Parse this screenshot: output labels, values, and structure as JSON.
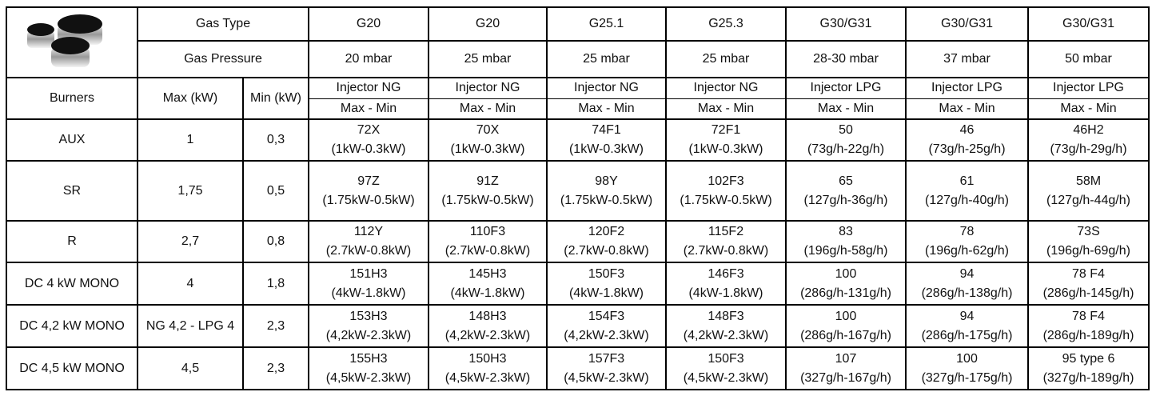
{
  "header": {
    "gas_type_label": "Gas Type",
    "gas_pressure_label": "Gas Pressure",
    "burners_label": "Burners",
    "max_label": "Max (kW)",
    "min_label": "Min (kW)",
    "columns": [
      {
        "gas_type": "G20",
        "pressure": "20 mbar",
        "injector": "Injector NG",
        "range": "Max - Min"
      },
      {
        "gas_type": "G20",
        "pressure": "25 mbar",
        "injector": "Injector NG",
        "range": "Max - Min"
      },
      {
        "gas_type": "G25.1",
        "pressure": "25 mbar",
        "injector": "Injector NG",
        "range": "Max - Min"
      },
      {
        "gas_type": "G25.3",
        "pressure": "25 mbar",
        "injector": "Injector NG",
        "range": "Max - Min"
      },
      {
        "gas_type": "G30/G31",
        "pressure": "28-30 mbar",
        "injector": "Injector LPG",
        "range": "Max - Min"
      },
      {
        "gas_type": "G30/G31",
        "pressure": "37 mbar",
        "injector": "Injector LPG",
        "range": "Max - Min"
      },
      {
        "gas_type": "G30/G31",
        "pressure": "50 mbar",
        "injector": "Injector LPG",
        "range": "Max - Min"
      }
    ]
  },
  "rows": [
    {
      "burner": "AUX",
      "max": "1",
      "min": "0,3",
      "cells": [
        {
          "code": "72X",
          "range": "(1kW-0.3kW)"
        },
        {
          "code": "70X",
          "range": "(1kW-0.3kW)"
        },
        {
          "code": "74F1",
          "range": "(1kW-0.3kW)"
        },
        {
          "code": "72F1",
          "range": "(1kW-0.3kW)"
        },
        {
          "code": "50",
          "range": "(73g/h-22g/h)"
        },
        {
          "code": "46",
          "range": "(73g/h-25g/h)"
        },
        {
          "code": "46H2",
          "range": "(73g/h-29g/h)"
        }
      ]
    },
    {
      "burner": "SR",
      "max": "1,75",
      "min": "0,5",
      "cells": [
        {
          "code": "97Z",
          "range": "(1.75kW-0.5kW)"
        },
        {
          "code": "91Z",
          "range": "(1.75kW-0.5kW)"
        },
        {
          "code": "98Y",
          "range": "(1.75kW-0.5kW)"
        },
        {
          "code": "102F3",
          "range": "(1.75kW-0.5kW)"
        },
        {
          "code": "65",
          "range": "(127g/h-36g/h)"
        },
        {
          "code": "61",
          "range": "(127g/h-40g/h)"
        },
        {
          "code": "58M",
          "range": "(127g/h-44g/h)"
        }
      ]
    },
    {
      "burner": "R",
      "max": "2,7",
      "min": "0,8",
      "cells": [
        {
          "code": "112Y",
          "range": "(2.7kW-0.8kW)"
        },
        {
          "code": "110F3",
          "range": "(2.7kW-0.8kW)"
        },
        {
          "code": "120F2",
          "range": "(2.7kW-0.8kW)"
        },
        {
          "code": "115F2",
          "range": "(2.7kW-0.8kW)"
        },
        {
          "code": "83",
          "range": "(196g/h-58g/h)"
        },
        {
          "code": "78",
          "range": "(196g/h-62g/h)"
        },
        {
          "code": "73S",
          "range": "(196g/h-69g/h)"
        }
      ]
    },
    {
      "burner": "DC 4 kW MONO",
      "max": "4",
      "min": "1,8",
      "cells": [
        {
          "code": "151H3",
          "range": "(4kW-1.8kW)"
        },
        {
          "code": "145H3",
          "range": "(4kW-1.8kW)"
        },
        {
          "code": "150F3",
          "range": "(4kW-1.8kW)"
        },
        {
          "code": "146F3",
          "range": "(4kW-1.8kW)"
        },
        {
          "code": "100",
          "range": "(286g/h-131g/h)"
        },
        {
          "code": "94",
          "range": "(286g/h-138g/h)"
        },
        {
          "code": "78 F4",
          "range": "(286g/h-145g/h)"
        }
      ]
    },
    {
      "burner": "DC 4,2 kW MONO",
      "max": "NG 4,2 - LPG 4",
      "min": "2,3",
      "cells": [
        {
          "code": "153H3",
          "range": "(4,2kW-2.3kW)"
        },
        {
          "code": "148H3",
          "range": "(4,2kW-2.3kW)"
        },
        {
          "code": "154F3",
          "range": "(4,2kW-2.3kW)"
        },
        {
          "code": "148F3",
          "range": "(4,2kW-2.3kW)"
        },
        {
          "code": "100",
          "range": "(286g/h-167g/h)"
        },
        {
          "code": "94",
          "range": "(286g/h-175g/h)"
        },
        {
          "code": "78 F4",
          "range": "(286g/h-189g/h)"
        }
      ]
    },
    {
      "burner": "DC 4,5 kW MONO",
      "max": "4,5",
      "min": "2,3",
      "cells": [
        {
          "code": "155H3",
          "range": "(4,5kW-2.3kW)"
        },
        {
          "code": "150H3",
          "range": "(4,5kW-2.3kW)"
        },
        {
          "code": "157F3",
          "range": "(4,5kW-2.3kW)"
        },
        {
          "code": "150F3",
          "range": "(4,5kW-2.3kW)"
        },
        {
          "code": "107",
          "range": "(327g/h-167g/h)"
        },
        {
          "code": "100",
          "range": "(327g/h-175g/h)"
        },
        {
          "code": "95 type 6",
          "range": "(327g/h-189g/h)"
        }
      ]
    }
  ]
}
